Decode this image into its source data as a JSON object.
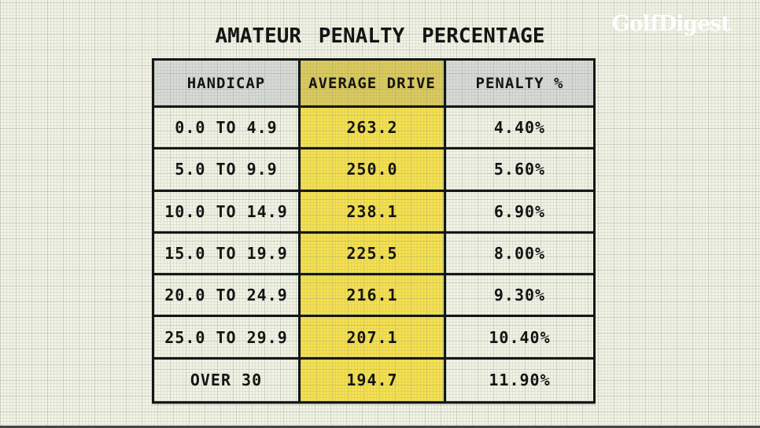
{
  "title": "AMATEUR PENALTY PERCENTAGE",
  "brand": "GolfDigest",
  "table": {
    "headers": {
      "handicap": "HANDICAP",
      "avg_drive": "AVERAGE DRIVE",
      "penalty": "PENALTY %"
    },
    "rows": [
      {
        "handicap": "0.0 TO 4.9",
        "avg_drive": "263.2",
        "penalty": "4.40%"
      },
      {
        "handicap": "5.0 TO 9.9",
        "avg_drive": "250.0",
        "penalty": "5.60%"
      },
      {
        "handicap": "10.0 TO 14.9",
        "avg_drive": "238.1",
        "penalty": "6.90%"
      },
      {
        "handicap": "15.0 TO 19.9",
        "avg_drive": "225.5",
        "penalty": "8.00%"
      },
      {
        "handicap": "20.0 TO 24.9",
        "avg_drive": "216.1",
        "penalty": "9.30%"
      },
      {
        "handicap": "25.0 TO 29.9",
        "avg_drive": "207.1",
        "penalty": "10.40%"
      },
      {
        "handicap": "OVER 30",
        "avg_drive": "194.7",
        "penalty": "11.90%"
      }
    ]
  },
  "chart_data": {
    "type": "table",
    "title": "AMATEUR PENALTY PERCENTAGE",
    "columns": [
      "HANDICAP",
      "AVERAGE DRIVE",
      "PENALTY %"
    ],
    "categories": [
      "0.0 TO 4.9",
      "5.0 TO 9.9",
      "10.0 TO 14.9",
      "15.0 TO 19.9",
      "20.0 TO 24.9",
      "25.0 TO 29.9",
      "OVER 30"
    ],
    "series": [
      {
        "name": "AVERAGE DRIVE",
        "values": [
          263.2,
          250.0,
          238.1,
          225.5,
          216.1,
          207.1,
          194.7
        ]
      },
      {
        "name": "PENALTY %",
        "values": [
          4.4,
          5.6,
          6.9,
          8.0,
          9.3,
          10.4,
          11.9
        ]
      }
    ],
    "layout_hints": {
      "highlighted_column": "AVERAGE DRIVE",
      "grid_paper_background": true
    }
  },
  "colors": {
    "background": "#f3f2e4",
    "header_gray": "#d9d9d5",
    "header_yellow": "#ddc95a",
    "cell_yellow": "#f8e04c",
    "border": "#161616",
    "text": "#141414",
    "logo": "#ffffff",
    "bottom_bar": "#454545"
  }
}
